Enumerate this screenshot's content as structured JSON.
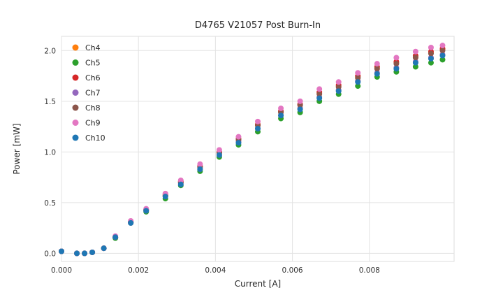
{
  "chart_data": {
    "type": "scatter",
    "title": "D4765 V21057 Post Burn-In",
    "xlabel": "Current [A]",
    "ylabel": "Power [mW]",
    "xlim": [
      0.0,
      0.0102
    ],
    "ylim": [
      -0.08,
      2.14
    ],
    "xticks": [
      0.0,
      0.002,
      0.004,
      0.006,
      0.008
    ],
    "yticks": [
      0.0,
      0.5,
      1.0,
      1.5,
      2.0
    ],
    "grid": true,
    "legend_position": "upper-left",
    "x": [
      0.0,
      0.0004,
      0.0006,
      0.0008,
      0.0011,
      0.0014,
      0.0018,
      0.0022,
      0.0027,
      0.0031,
      0.0036,
      0.0041,
      0.0046,
      0.0051,
      0.0057,
      0.0062,
      0.0067,
      0.0072,
      0.0077,
      0.0082,
      0.0087,
      0.0092,
      0.0096,
      0.0099
    ],
    "series": [
      {
        "name": "Ch4",
        "color": "#ff7f0e",
        "values": [
          0.02,
          0.0,
          0.0,
          0.01,
          0.05,
          0.16,
          0.31,
          0.43,
          0.57,
          0.7,
          0.86,
          0.99,
          1.12,
          1.27,
          1.4,
          1.47,
          1.58,
          1.65,
          1.74,
          1.83,
          1.88,
          1.94,
          1.98,
          2.01
        ]
      },
      {
        "name": "Ch5",
        "color": "#2ca02c",
        "values": [
          0.02,
          0.0,
          0.0,
          0.01,
          0.05,
          0.15,
          0.3,
          0.41,
          0.54,
          0.67,
          0.81,
          0.95,
          1.07,
          1.2,
          1.33,
          1.39,
          1.5,
          1.57,
          1.65,
          1.74,
          1.79,
          1.84,
          1.88,
          1.91
        ]
      },
      {
        "name": "Ch6",
        "color": "#d62728",
        "values": [
          0.02,
          0.0,
          0.0,
          0.01,
          0.05,
          0.16,
          0.31,
          0.43,
          0.58,
          0.71,
          0.86,
          1.0,
          1.13,
          1.27,
          1.4,
          1.47,
          1.59,
          1.66,
          1.75,
          1.84,
          1.89,
          1.95,
          1.99,
          2.02
        ]
      },
      {
        "name": "Ch7",
        "color": "#9467bd",
        "values": [
          0.02,
          0.0,
          0.0,
          0.01,
          0.05,
          0.16,
          0.3,
          0.42,
          0.56,
          0.69,
          0.83,
          0.97,
          1.1,
          1.23,
          1.36,
          1.43,
          1.54,
          1.61,
          1.7,
          1.78,
          1.83,
          1.89,
          1.93,
          1.96
        ]
      },
      {
        "name": "Ch8",
        "color": "#8c564b",
        "values": [
          0.02,
          0.0,
          0.0,
          0.01,
          0.05,
          0.16,
          0.31,
          0.43,
          0.57,
          0.7,
          0.85,
          0.99,
          1.12,
          1.26,
          1.39,
          1.46,
          1.57,
          1.64,
          1.73,
          1.82,
          1.87,
          1.93,
          1.97,
          2.0
        ]
      },
      {
        "name": "Ch9",
        "color": "#e377c2",
        "values": [
          0.02,
          0.0,
          0.0,
          0.01,
          0.05,
          0.17,
          0.32,
          0.44,
          0.59,
          0.72,
          0.88,
          1.02,
          1.15,
          1.3,
          1.43,
          1.5,
          1.62,
          1.69,
          1.78,
          1.87,
          1.93,
          1.99,
          2.03,
          2.05
        ]
      },
      {
        "name": "Ch10",
        "color": "#1f77b4",
        "values": [
          0.02,
          0.0,
          0.0,
          0.01,
          0.05,
          0.16,
          0.3,
          0.42,
          0.56,
          0.68,
          0.83,
          0.97,
          1.09,
          1.23,
          1.36,
          1.42,
          1.53,
          1.6,
          1.69,
          1.77,
          1.82,
          1.88,
          1.92,
          1.95
        ]
      }
    ],
    "style": {
      "grid_color": "#e3e3e3",
      "spine_color": "#dddddd",
      "background": "#ffffff",
      "marker_radius": 4
    }
  }
}
